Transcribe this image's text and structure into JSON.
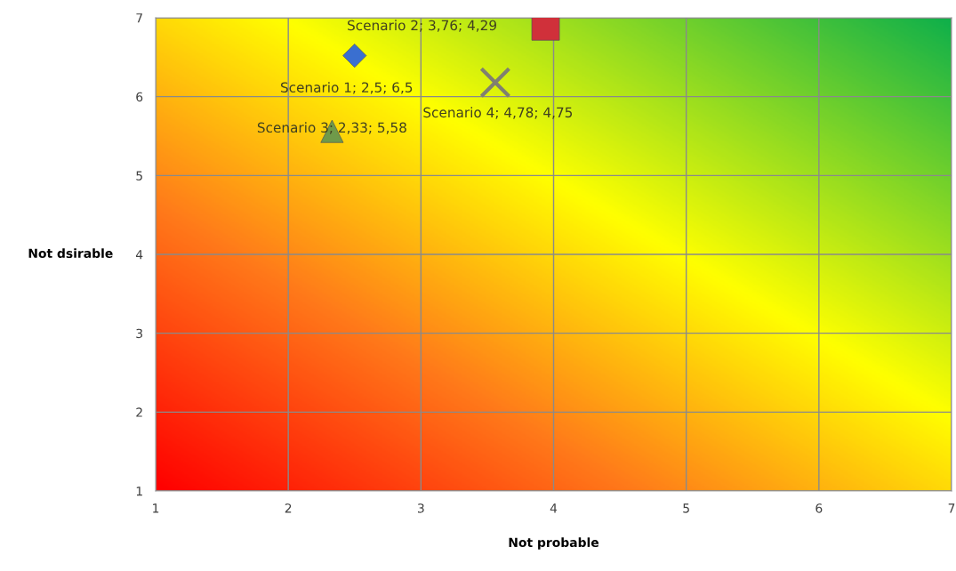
{
  "chart_data": {
    "type": "scatter",
    "xlabel": "Not probable",
    "ylabel": "Not dsirable",
    "xlim": [
      1,
      7
    ],
    "ylim": [
      1,
      7
    ],
    "xticks": [
      1,
      2,
      3,
      4,
      5,
      6,
      7
    ],
    "yticks": [
      1,
      2,
      3,
      4,
      5,
      6,
      7
    ],
    "grid": true,
    "series": [
      {
        "color": "#3a6fd0",
        "marker": "diamond",
        "x": [
          2.5
        ],
        "values": [
          6.52
        ]
      },
      {
        "color": "#d0303a",
        "marker": "square",
        "x": [
          3.94
        ],
        "values": [
          6.89
        ]
      },
      {
        "color": "#6f9a4a",
        "marker": "triangle",
        "x": [
          2.33
        ],
        "values": [
          5.56
        ]
      },
      {
        "color": "#808070",
        "marker": "cross",
        "x": [
          3.56
        ],
        "values": [
          6.18
        ]
      }
    ],
    "annotations": [
      "Scenario 1; 2,5; 6,5",
      "Scenario 2; 3,76; 4,29",
      "Scenario 3; 2,33; 5,58",
      "Scenario 4; 4,78; 4,75"
    ]
  }
}
